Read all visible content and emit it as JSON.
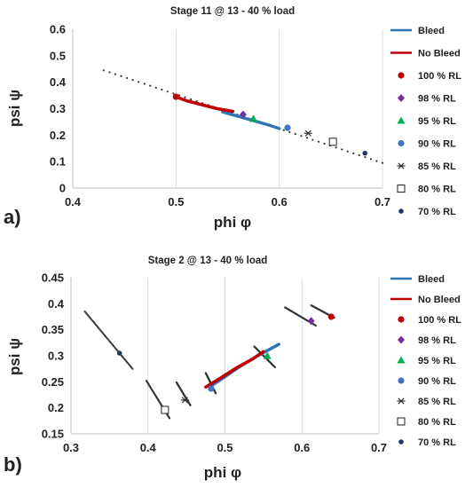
{
  "chart_data": [
    {
      "type": "scatter",
      "panel_label": "a)",
      "title": "Stage 11 @ 13 - 40 % load",
      "xlabel": "phi φ",
      "ylabel": "psi ψ",
      "xlim": [
        0.4,
        0.7
      ],
      "ylim": [
        0,
        0.6
      ],
      "xticks": [
        "0.4",
        "0.5",
        "0.6",
        "0.7"
      ],
      "yticks": [
        "0",
        "0.1",
        "0.2",
        "0.3",
        "0.4",
        "0.5",
        "0.6"
      ],
      "grid": "vertical",
      "legend_position": "right",
      "series": [
        {
          "name": "Bleed",
          "kind": "line",
          "color": "#2e75b6",
          "points": [
            [
              0.545,
              0.288
            ],
            [
              0.56,
              0.272
            ],
            [
              0.575,
              0.255
            ],
            [
              0.59,
              0.238
            ],
            [
              0.6,
              0.225
            ]
          ]
        },
        {
          "name": "No Bleed",
          "kind": "line",
          "color": "#c00000",
          "points": [
            [
              0.5,
              0.345
            ],
            [
              0.51,
              0.33
            ],
            [
              0.525,
              0.315
            ],
            [
              0.54,
              0.3
            ],
            [
              0.555,
              0.29
            ]
          ]
        },
        {
          "name": "100 % RL",
          "kind": "marker",
          "marker": "circle",
          "color": "#c00000",
          "points": [
            [
              0.5,
              0.345
            ]
          ]
        },
        {
          "name": "98 % RL",
          "kind": "marker",
          "marker": "diamond",
          "color": "#7030a0",
          "points": [
            [
              0.565,
              0.278
            ]
          ]
        },
        {
          "name": "95 % RL",
          "kind": "marker",
          "marker": "triangle",
          "color": "#00b050",
          "points": [
            [
              0.575,
              0.262
            ]
          ]
        },
        {
          "name": "90 % RL",
          "kind": "marker",
          "marker": "circle",
          "color": "#4472c4",
          "points": [
            [
              0.608,
              0.228
            ]
          ]
        },
        {
          "name": "85 % RL",
          "kind": "marker",
          "marker": "asterisk",
          "color": "#333333",
          "points": [
            [
              0.628,
              0.207
            ]
          ]
        },
        {
          "name": "80 % RL",
          "kind": "marker",
          "marker": "square-open",
          "color": "#222222",
          "points": [
            [
              0.652,
              0.175
            ]
          ]
        },
        {
          "name": "70 % RL",
          "kind": "marker",
          "marker": "circle-small",
          "color": "#1f3864",
          "points": [
            [
              0.683,
              0.132
            ]
          ]
        },
        {
          "name": "",
          "kind": "dotted",
          "color": "#333333",
          "points": [
            [
              0.43,
              0.445
            ],
            [
              0.7,
              0.095
            ]
          ]
        }
      ]
    },
    {
      "type": "scatter",
      "panel_label": "b)",
      "title": "Stage 2 @ 13 - 40 % load",
      "xlabel": "phi φ",
      "ylabel": "psi ψ",
      "xlim": [
        0.3,
        0.7
      ],
      "ylim": [
        0.15,
        0.45
      ],
      "xticks": [
        "0.3",
        "0.4",
        "0.5",
        "0.6",
        "0.7"
      ],
      "yticks": [
        "0.15",
        "0.2",
        "0.25",
        "0.3",
        "0.35",
        "0.4",
        "0.45"
      ],
      "grid": "vertical",
      "legend_position": "right",
      "series": [
        {
          "name": "Bleed",
          "kind": "line",
          "color": "#2e75b6",
          "points": [
            [
              0.48,
              0.24
            ],
            [
              0.5,
              0.26
            ],
            [
              0.52,
              0.28
            ],
            [
              0.545,
              0.302
            ],
            [
              0.57,
              0.322
            ]
          ]
        },
        {
          "name": "No Bleed",
          "kind": "line",
          "color": "#c00000",
          "points": [
            [
              0.475,
              0.24
            ],
            [
              0.495,
              0.258
            ],
            [
              0.515,
              0.277
            ],
            [
              0.535,
              0.293
            ],
            [
              0.55,
              0.308
            ]
          ]
        },
        {
          "name": "100 % RL",
          "kind": "marker",
          "marker": "circle",
          "color": "#c00000",
          "points": [
            [
              0.638,
              0.375
            ]
          ]
        },
        {
          "name": "98 % RL",
          "kind": "marker",
          "marker": "diamond",
          "color": "#7030a0",
          "points": [
            [
              0.612,
              0.367
            ]
          ]
        },
        {
          "name": "95 % RL",
          "kind": "marker",
          "marker": "triangle",
          "color": "#00b050",
          "points": [
            [
              0.555,
              0.3
            ]
          ]
        },
        {
          "name": "90 % RL",
          "kind": "marker",
          "marker": "circle",
          "color": "#4472c4",
          "points": [
            [
              0.482,
              0.237
            ]
          ]
        },
        {
          "name": "85 % RL",
          "kind": "marker",
          "marker": "asterisk",
          "color": "#333333",
          "points": [
            [
              0.448,
              0.215
            ]
          ]
        },
        {
          "name": "80 % RL",
          "kind": "marker",
          "marker": "square-open",
          "color": "#222222",
          "points": [
            [
              0.422,
              0.196
            ]
          ]
        },
        {
          "name": "70 % RL",
          "kind": "marker",
          "marker": "circle-small",
          "color": "#1f3864",
          "points": [
            [
              0.363,
              0.305
            ]
          ]
        },
        {
          "name": "",
          "kind": "dotted",
          "color": "#333333",
          "points": [
            [
              0.318,
              0.385
            ],
            [
              0.38,
              0.275
            ]
          ]
        },
        {
          "name": "",
          "kind": "dotted",
          "color": "#333333",
          "points": [
            [
              0.398,
              0.252
            ],
            [
              0.428,
              0.18
            ]
          ]
        },
        {
          "name": "",
          "kind": "dotted",
          "color": "#333333",
          "points": [
            [
              0.437,
              0.249
            ],
            [
              0.455,
              0.205
            ]
          ]
        },
        {
          "name": "",
          "kind": "dotted",
          "color": "#333333",
          "points": [
            [
              0.475,
              0.267
            ],
            [
              0.488,
              0.228
            ]
          ]
        },
        {
          "name": "",
          "kind": "dotted",
          "color": "#333333",
          "points": [
            [
              0.538,
              0.318
            ],
            [
              0.565,
              0.278
            ]
          ]
        },
        {
          "name": "",
          "kind": "dotted",
          "color": "#333333",
          "points": [
            [
              0.578,
              0.393
            ],
            [
              0.618,
              0.358
            ]
          ]
        },
        {
          "name": "",
          "kind": "dotted",
          "color": "#333333",
          "points": [
            [
              0.612,
              0.397
            ],
            [
              0.642,
              0.373
            ]
          ]
        }
      ]
    }
  ]
}
